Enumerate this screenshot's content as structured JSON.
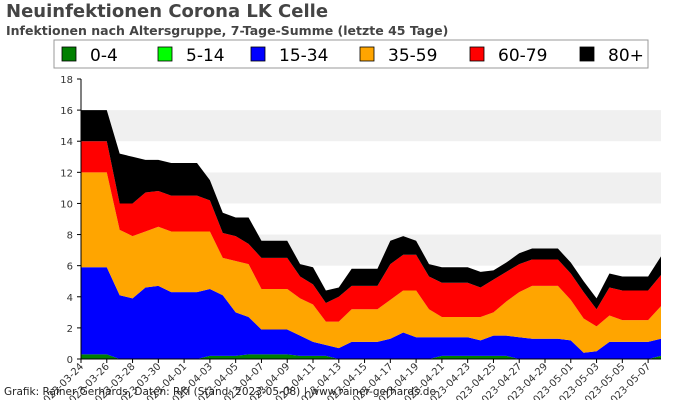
{
  "chart_data": {
    "type": "area",
    "stacked": true,
    "title": "Neuinfektionen Corona LK Celle",
    "subtitle": "Infektionen nach Altersgruppe, 7-Tage-Summe (letzte 45 Tage)",
    "footer": "Grafik: Rainer Gerhards, Daten: RKI (Stand: 2023-05-08) | www.rainer-gerhards.de",
    "xlabel": "",
    "ylabel": "",
    "ylim": [
      0,
      18
    ],
    "yticks": [
      0,
      2,
      4,
      6,
      8,
      10,
      12,
      14,
      16,
      18
    ],
    "grid": "horizontal bands",
    "legend_position": "top",
    "x": [
      "2023-03-24",
      "2023-03-25",
      "2023-03-26",
      "2023-03-27",
      "2023-03-28",
      "2023-03-29",
      "2023-03-30",
      "2023-03-31",
      "2023-04-01",
      "2023-04-02",
      "2023-04-03",
      "2023-04-04",
      "2023-04-05",
      "2023-04-06",
      "2023-04-07",
      "2023-04-08",
      "2023-04-09",
      "2023-04-10",
      "2023-04-11",
      "2023-04-12",
      "2023-04-13",
      "2023-04-14",
      "2023-04-15",
      "2023-04-16",
      "2023-04-17",
      "2023-04-18",
      "2023-04-19",
      "2023-04-20",
      "2023-04-21",
      "2023-04-22",
      "2023-04-23",
      "2023-04-24",
      "2023-04-25",
      "2023-04-26",
      "2023-04-27",
      "2023-04-28",
      "2023-04-29",
      "2023-04-30",
      "2023-05-01",
      "2023-05-02",
      "2023-05-03",
      "2023-05-04",
      "2023-05-05",
      "2023-05-06",
      "2023-05-07",
      "2023-05-08"
    ],
    "x_tick_labels": [
      "2023-03-24",
      "2023-03-26",
      "2023-03-28",
      "2023-03-30",
      "2023-04-01",
      "2023-04-03",
      "2023-04-05",
      "2023-04-07",
      "2023-04-09",
      "2023-04-11",
      "2023-04-13",
      "2023-04-15",
      "2023-04-17",
      "2023-04-19",
      "2023-04-21",
      "2023-04-23",
      "2023-04-25",
      "2023-04-27",
      "2023-04-29",
      "2023-05-01",
      "2023-05-03",
      "2023-05-05",
      "2023-05-07"
    ],
    "series": [
      {
        "name": "0-4",
        "color": "#008000",
        "values": [
          0.3,
          0.3,
          0.3,
          0,
          0,
          0,
          0,
          0,
          0,
          0,
          0.2,
          0.2,
          0.2,
          0.3,
          0.3,
          0.3,
          0.3,
          0.2,
          0.2,
          0.2,
          0,
          0,
          0,
          0,
          0,
          0,
          0,
          0,
          0.2,
          0.2,
          0.2,
          0.2,
          0.2,
          0.2,
          0,
          0,
          0,
          0,
          0,
          0,
          0,
          0,
          0,
          0,
          0,
          0.2
        ]
      },
      {
        "name": "5-14",
        "color": "#00ff00",
        "values": [
          0,
          0,
          0,
          0,
          0,
          0,
          0,
          0,
          0,
          0,
          0,
          0,
          0,
          0,
          0,
          0,
          0,
          0,
          0,
          0,
          0,
          0,
          0,
          0,
          0,
          0,
          0,
          0,
          0,
          0,
          0,
          0,
          0,
          0,
          0,
          0,
          0,
          0,
          0,
          0,
          0,
          0,
          0,
          0,
          0,
          0
        ]
      },
      {
        "name": "15-34",
        "color": "#0000ff",
        "values": [
          5.6,
          5.6,
          5.6,
          4.1,
          3.9,
          4.6,
          4.7,
          4.3,
          4.3,
          4.3,
          4.3,
          3.9,
          2.8,
          2.4,
          1.6,
          1.6,
          1.6,
          1.3,
          0.9,
          0.7,
          0.7,
          1.1,
          1.1,
          1.1,
          1.3,
          1.7,
          1.4,
          1.4,
          1.2,
          1.2,
          1.2,
          1.0,
          1.3,
          1.3,
          1.4,
          1.3,
          1.3,
          1.3,
          1.2,
          0.4,
          0.5,
          1.1,
          1.1,
          1.1,
          1.1,
          1.1
        ]
      },
      {
        "name": "35-59",
        "color": "#ffa500",
        "values": [
          6.1,
          6.1,
          6.1,
          4.2,
          4.0,
          3.6,
          3.8,
          3.9,
          3.9,
          3.9,
          3.7,
          2.4,
          3.3,
          3.4,
          2.6,
          2.6,
          2.6,
          2.4,
          2.4,
          1.5,
          1.7,
          2.1,
          2.1,
          2.1,
          2.5,
          2.7,
          3.0,
          1.8,
          1.3,
          1.3,
          1.3,
          1.5,
          1.5,
          2.2,
          2.9,
          3.4,
          3.4,
          3.4,
          2.6,
          2.2,
          1.6,
          1.7,
          1.4,
          1.4,
          1.4,
          2.1
        ]
      },
      {
        "name": "60-79",
        "color": "#ff0000",
        "values": [
          2.0,
          2.0,
          2.0,
          1.7,
          2.1,
          2.5,
          2.3,
          2.3,
          2.3,
          2.3,
          2.0,
          1.6,
          1.6,
          1.3,
          2.0,
          2.0,
          2.0,
          1.4,
          1.3,
          1.2,
          1.6,
          1.5,
          1.5,
          1.5,
          2.3,
          2.3,
          2.3,
          2.1,
          2.2,
          2.2,
          2.2,
          1.9,
          2.1,
          1.9,
          1.8,
          1.7,
          1.7,
          1.7,
          1.7,
          1.7,
          1.1,
          1.8,
          1.9,
          1.9,
          1.9,
          2.0
        ]
      },
      {
        "name": "80+",
        "color": "#000000",
        "values": [
          2.0,
          2.0,
          2.0,
          3.2,
          3.0,
          2.1,
          2.0,
          2.1,
          2.1,
          2.1,
          1.3,
          1.3,
          1.2,
          1.7,
          1.1,
          1.1,
          1.1,
          0.8,
          1.1,
          0.8,
          0.6,
          1.1,
          1.1,
          1.1,
          1.5,
          1.2,
          0.9,
          0.8,
          1.0,
          1.0,
          1.0,
          1.0,
          0.6,
          0.6,
          0.7,
          0.7,
          0.7,
          0.7,
          0.7,
          0.7,
          0.7,
          0.9,
          0.9,
          0.9,
          0.9,
          1.2
        ]
      }
    ]
  }
}
